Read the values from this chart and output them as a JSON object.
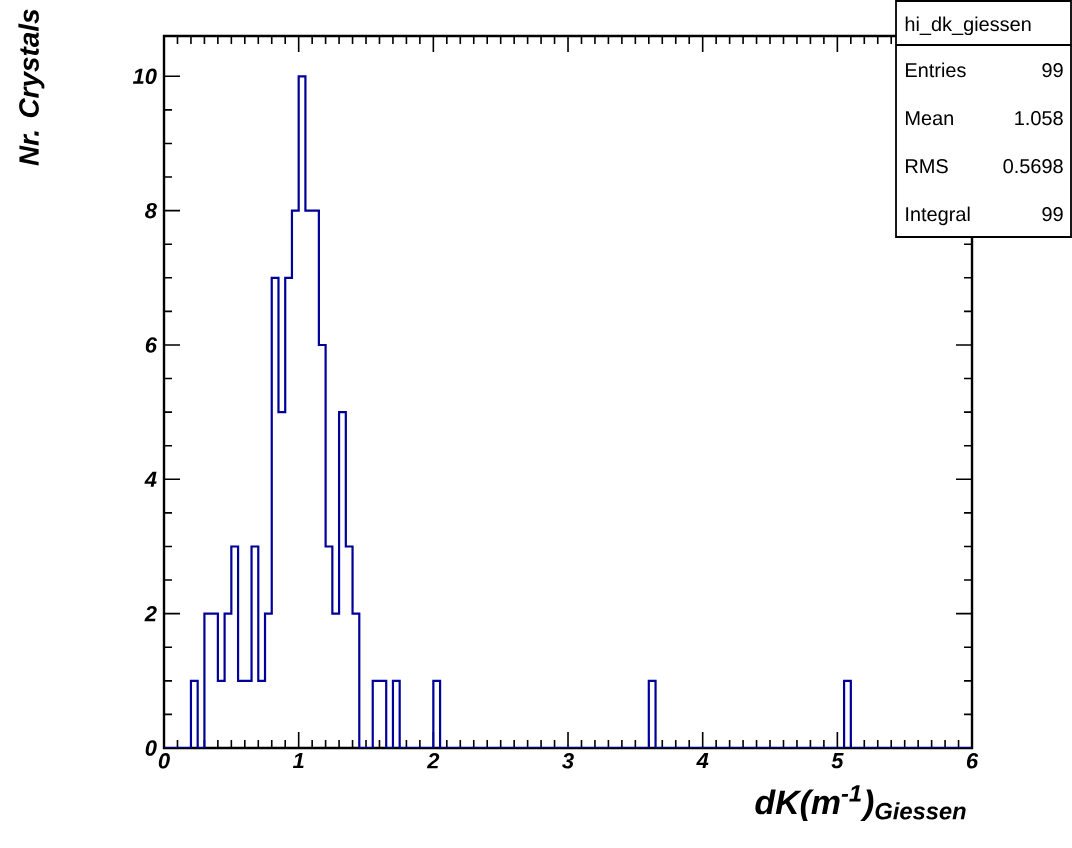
{
  "chart_data": {
    "type": "histogram",
    "xlabel": "dK(m$^{-1}$)$_{Giessen}$",
    "ylabel": "Nr. Crystals",
    "bins": [
      0,
      0.05,
      0.1,
      0.15,
      0.2,
      0.25,
      0.3,
      0.35,
      0.4,
      0.45,
      0.5,
      0.55,
      0.6,
      0.65,
      0.7,
      0.75,
      0.8,
      0.85,
      0.9,
      0.95,
      1,
      1.05,
      1.1,
      1.15,
      1.2,
      1.25,
      1.3,
      1.35,
      1.4,
      1.45,
      1.5,
      1.55,
      1.6,
      1.65,
      1.7,
      1.75,
      1.8,
      1.85,
      1.9,
      1.95,
      2,
      2.05,
      2.1,
      2.15,
      2.2,
      2.25,
      2.3,
      2.35,
      2.4,
      2.45,
      2.5,
      2.55,
      2.6,
      2.65,
      2.7,
      2.75,
      2.8,
      2.85,
      2.9,
      2.95,
      3,
      3.05,
      3.1,
      3.15,
      3.2,
      3.25,
      3.3,
      3.35,
      3.4,
      3.45,
      3.5,
      3.55,
      3.6,
      3.65,
      3.7,
      3.75,
      3.8,
      3.85,
      3.9,
      3.95,
      4,
      4.05,
      4.1,
      4.15,
      4.2,
      4.25,
      4.3,
      4.35,
      4.4,
      4.45,
      4.5,
      4.55,
      4.6,
      4.65,
      4.7,
      4.75,
      4.8,
      4.85,
      4.9,
      4.95,
      5,
      5.05,
      5.1,
      5.15,
      5.2,
      5.25,
      5.3,
      5.35,
      5.4,
      5.45,
      5.5,
      5.55,
      5.6,
      5.65,
      5.7,
      5.75,
      5.8,
      5.85,
      5.9,
      5.95,
      6
    ],
    "values": [
      0,
      0,
      0,
      0,
      1,
      0,
      2,
      2,
      1,
      2,
      3,
      1,
      1,
      3,
      1,
      2,
      7,
      5,
      7,
      8,
      10,
      8,
      8,
      6,
      3,
      2,
      5,
      3,
      2,
      0,
      0,
      1,
      1,
      0,
      1,
      0,
      0,
      0,
      0,
      0,
      1,
      0,
      0,
      0,
      0,
      0,
      0,
      0,
      0,
      0,
      0,
      0,
      0,
      0,
      0,
      0,
      0,
      0,
      0,
      0,
      0,
      0,
      0,
      0,
      0,
      0,
      0,
      0,
      0,
      0,
      0,
      0,
      1,
      0,
      0,
      0,
      0,
      0,
      0,
      0,
      0,
      0,
      0,
      0,
      0,
      0,
      0,
      0,
      0,
      0,
      0,
      0,
      0,
      0,
      0,
      0,
      0,
      0,
      0,
      0,
      0,
      1,
      0,
      0,
      0,
      0,
      0,
      0,
      0,
      0,
      0,
      0,
      0,
      0,
      0,
      0,
      0,
      0,
      0,
      0
    ],
    "color": "#000099",
    "xlim": [
      0,
      6
    ],
    "ylim": [
      0,
      10.6
    ],
    "xticks": [
      0,
      1,
      2,
      3,
      4,
      5,
      6
    ],
    "yticks": [
      0,
      2,
      4,
      6,
      8,
      10
    ],
    "annotations": [
      "hi_dk_giessen",
      "Entries",
      "99",
      "Mean",
      "1.058",
      "RMS",
      "0.5698",
      "Integral",
      "99"
    ]
  }
}
